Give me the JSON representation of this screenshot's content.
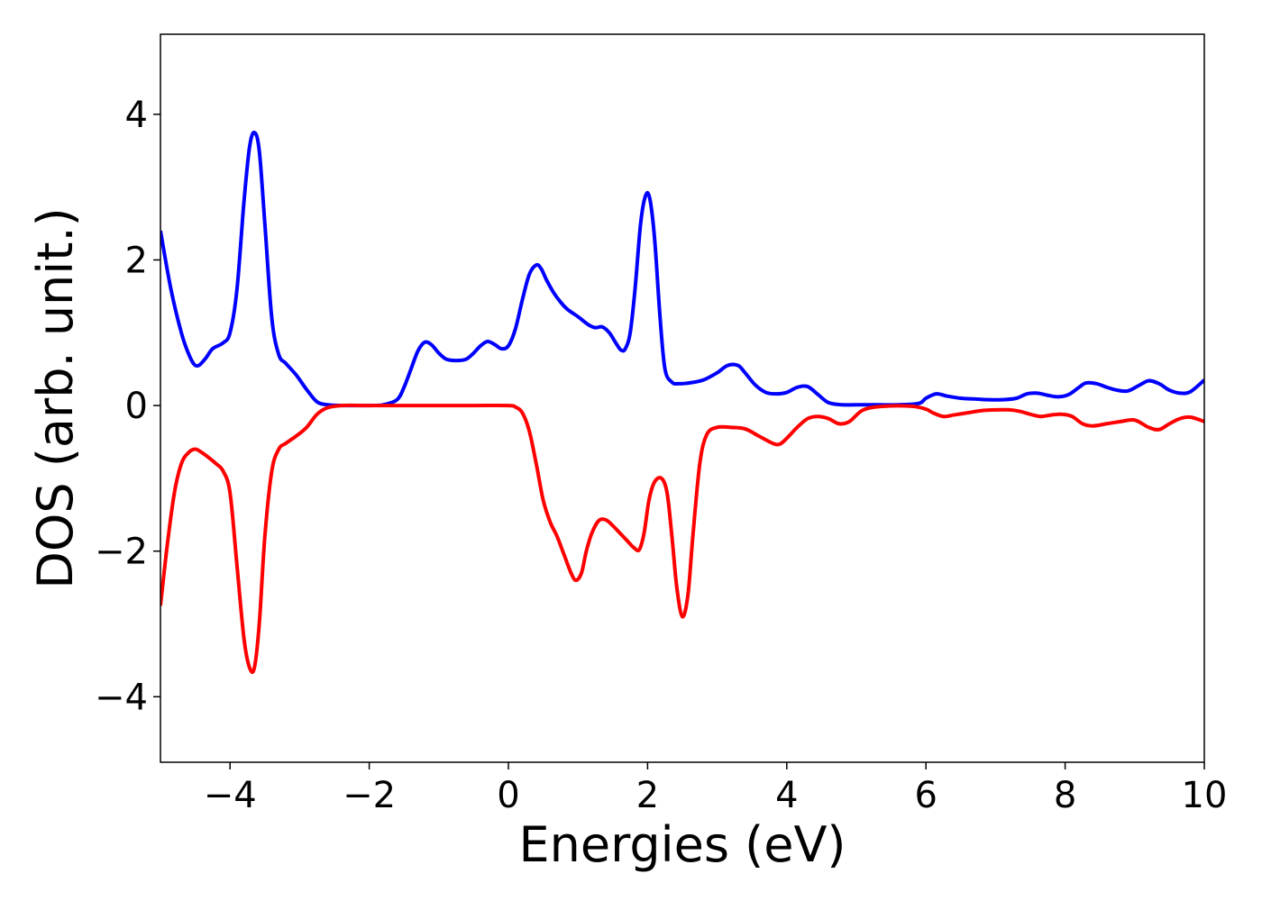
{
  "chart_data": {
    "type": "line",
    "title": "",
    "xlabel": "Energies (eV)",
    "ylabel": "DOS (arb. unit.)",
    "xlim": [
      -5,
      10
    ],
    "ylim": [
      -4.9,
      5.1
    ],
    "xticks": [
      -4,
      -2,
      0,
      2,
      4,
      6,
      8,
      10
    ],
    "xtick_labels": [
      "−4",
      "−2",
      "0",
      "2",
      "4",
      "6",
      "8",
      "10"
    ],
    "yticks": [
      -4,
      -2,
      0,
      2,
      4
    ],
    "ytick_labels": [
      "−4",
      "−2",
      "0",
      "2",
      "4"
    ],
    "grid": false,
    "legend": "none",
    "series": [
      {
        "color": "#0000ff",
        "x": [
          -5.0,
          -4.85,
          -4.7,
          -4.6,
          -4.52,
          -4.45,
          -4.35,
          -4.25,
          -4.1,
          -4.0,
          -3.9,
          -3.8,
          -3.72,
          -3.65,
          -3.58,
          -3.5,
          -3.4,
          -3.3,
          -3.2,
          -3.05,
          -2.9,
          -2.75,
          -2.6,
          -2.4,
          -2.2,
          -2.0,
          -1.8,
          -1.6,
          -1.5,
          -1.4,
          -1.3,
          -1.2,
          -1.1,
          -1.0,
          -0.9,
          -0.8,
          -0.7,
          -0.6,
          -0.5,
          -0.4,
          -0.3,
          -0.2,
          -0.1,
          0.0,
          0.1,
          0.2,
          0.3,
          0.4,
          0.47,
          0.55,
          0.65,
          0.75,
          0.85,
          1.0,
          1.15,
          1.25,
          1.35,
          1.45,
          1.55,
          1.62,
          1.68,
          1.75,
          1.82,
          1.9,
          1.97,
          2.03,
          2.1,
          2.18,
          2.25,
          2.35,
          2.45,
          2.6,
          2.8,
          3.0,
          3.15,
          3.3,
          3.4,
          3.55,
          3.7,
          3.85,
          4.0,
          4.15,
          4.3,
          4.45,
          4.6,
          4.8,
          5.0,
          5.3,
          5.6,
          5.9,
          6.0,
          6.15,
          6.3,
          6.5,
          6.7,
          6.9,
          7.1,
          7.3,
          7.45,
          7.6,
          7.75,
          7.9,
          8.05,
          8.2,
          8.3,
          8.45,
          8.6,
          8.75,
          8.9,
          9.05,
          9.2,
          9.35,
          9.5,
          9.65,
          9.8,
          10.0
        ],
        "y": [
          2.4,
          1.6,
          1.0,
          0.72,
          0.57,
          0.55,
          0.65,
          0.78,
          0.86,
          1.0,
          1.6,
          2.8,
          3.55,
          3.75,
          3.5,
          2.5,
          1.2,
          0.7,
          0.58,
          0.42,
          0.22,
          0.05,
          0.01,
          0.0,
          0.0,
          0.0,
          0.01,
          0.08,
          0.25,
          0.5,
          0.75,
          0.87,
          0.83,
          0.72,
          0.64,
          0.62,
          0.62,
          0.64,
          0.72,
          0.82,
          0.88,
          0.84,
          0.78,
          0.82,
          1.05,
          1.45,
          1.8,
          1.93,
          1.88,
          1.72,
          1.55,
          1.42,
          1.32,
          1.22,
          1.11,
          1.07,
          1.08,
          1.0,
          0.85,
          0.76,
          0.78,
          1.0,
          1.6,
          2.5,
          2.88,
          2.85,
          2.3,
          1.2,
          0.5,
          0.32,
          0.3,
          0.31,
          0.35,
          0.45,
          0.55,
          0.55,
          0.45,
          0.28,
          0.18,
          0.16,
          0.18,
          0.25,
          0.26,
          0.15,
          0.04,
          0.01,
          0.01,
          0.01,
          0.01,
          0.03,
          0.1,
          0.16,
          0.13,
          0.1,
          0.09,
          0.08,
          0.08,
          0.1,
          0.16,
          0.17,
          0.14,
          0.12,
          0.15,
          0.25,
          0.31,
          0.3,
          0.25,
          0.21,
          0.2,
          0.27,
          0.34,
          0.3,
          0.21,
          0.17,
          0.19,
          0.35
        ]
      },
      {
        "color": "#ff0000",
        "x": [
          -5.0,
          -4.9,
          -4.8,
          -4.7,
          -4.6,
          -4.5,
          -4.4,
          -4.3,
          -4.2,
          -4.1,
          -4.0,
          -3.9,
          -3.8,
          -3.72,
          -3.65,
          -3.58,
          -3.5,
          -3.4,
          -3.3,
          -3.2,
          -3.05,
          -2.9,
          -2.75,
          -2.6,
          -2.4,
          -2.0,
          -1.5,
          -1.0,
          -0.5,
          0.0,
          0.1,
          0.2,
          0.3,
          0.4,
          0.5,
          0.6,
          0.7,
          0.8,
          0.9,
          0.97,
          1.05,
          1.12,
          1.2,
          1.3,
          1.4,
          1.5,
          1.6,
          1.7,
          1.8,
          1.88,
          1.95,
          2.02,
          2.1,
          2.2,
          2.28,
          2.35,
          2.42,
          2.5,
          2.58,
          2.65,
          2.75,
          2.85,
          3.0,
          3.2,
          3.4,
          3.6,
          3.8,
          3.9,
          4.0,
          4.15,
          4.3,
          4.45,
          4.6,
          4.75,
          4.9,
          5.1,
          5.4,
          5.8,
          6.0,
          6.1,
          6.25,
          6.4,
          6.6,
          6.8,
          7.0,
          7.2,
          7.35,
          7.5,
          7.65,
          7.8,
          7.95,
          8.1,
          8.25,
          8.4,
          8.6,
          8.8,
          9.0,
          9.2,
          9.35,
          9.5,
          9.65,
          9.8,
          10.0
        ],
        "y": [
          -2.75,
          -1.9,
          -1.2,
          -0.8,
          -0.65,
          -0.6,
          -0.65,
          -0.72,
          -0.8,
          -0.9,
          -1.2,
          -2.2,
          -3.2,
          -3.6,
          -3.6,
          -3.0,
          -1.8,
          -0.9,
          -0.6,
          -0.52,
          -0.42,
          -0.3,
          -0.12,
          -0.03,
          0.0,
          0.0,
          0.0,
          0.0,
          0.0,
          0.0,
          -0.02,
          -0.1,
          -0.35,
          -0.8,
          -1.3,
          -1.6,
          -1.8,
          -2.05,
          -2.3,
          -2.4,
          -2.3,
          -2.0,
          -1.75,
          -1.58,
          -1.57,
          -1.65,
          -1.75,
          -1.85,
          -1.95,
          -1.98,
          -1.75,
          -1.3,
          -1.05,
          -1.0,
          -1.2,
          -1.8,
          -2.5,
          -2.9,
          -2.6,
          -1.8,
          -0.8,
          -0.4,
          -0.3,
          -0.3,
          -0.32,
          -0.42,
          -0.52,
          -0.53,
          -0.45,
          -0.3,
          -0.18,
          -0.15,
          -0.18,
          -0.25,
          -0.22,
          -0.06,
          -0.01,
          -0.01,
          -0.05,
          -0.1,
          -0.15,
          -0.13,
          -0.1,
          -0.07,
          -0.06,
          -0.06,
          -0.08,
          -0.12,
          -0.15,
          -0.13,
          -0.12,
          -0.15,
          -0.25,
          -0.28,
          -0.25,
          -0.22,
          -0.2,
          -0.3,
          -0.33,
          -0.25,
          -0.18,
          -0.16,
          -0.22
        ]
      }
    ]
  }
}
